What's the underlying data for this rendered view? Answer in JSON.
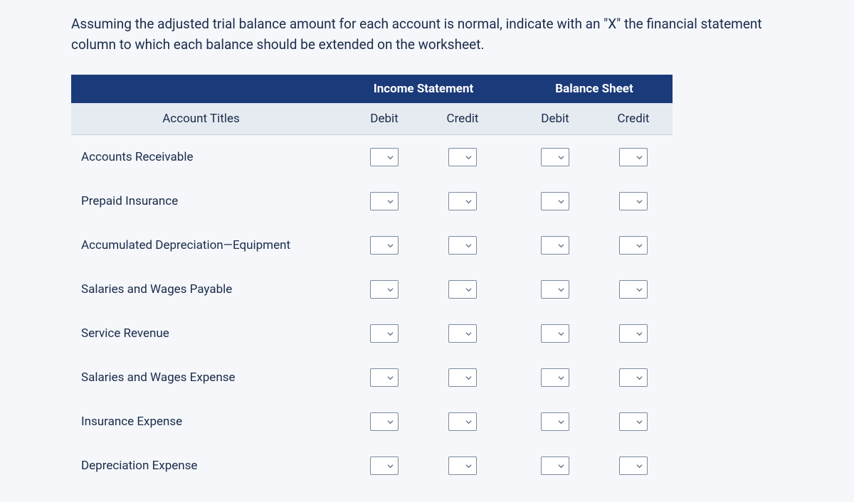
{
  "instruction": "Assuming the adjusted trial balance amount for each account is normal, indicate with an \"X\" the financial statement column to which each balance should be extended on the worksheet.",
  "headers": {
    "group1": "Income Statement",
    "group2": "Balance Sheet",
    "account_titles": "Account Titles",
    "debit": "Debit",
    "credit": "Credit"
  },
  "rows": [
    {
      "title": "Accounts Receivable"
    },
    {
      "title": "Prepaid Insurance"
    },
    {
      "title": "Accumulated Depreciation—Equipment"
    },
    {
      "title": "Salaries and Wages Payable"
    },
    {
      "title": "Service Revenue"
    },
    {
      "title": "Salaries and Wages Expense"
    },
    {
      "title": "Insurance Expense"
    },
    {
      "title": "Depreciation Expense"
    }
  ],
  "colors": {
    "header_bg": "#1a3a7a",
    "subheader_bg": "#e6ebf2",
    "page_bg": "#f5f7fa",
    "text": "#1a2b4a",
    "border": "#7a8aa0",
    "chevron": "#5a6a85"
  }
}
